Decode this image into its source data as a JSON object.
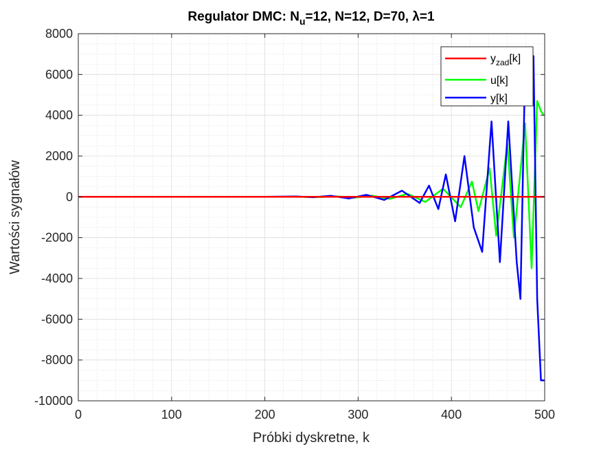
{
  "chart_data": {
    "type": "line",
    "title_parts": {
      "prefix": "Regulator DMC: N",
      "sub": "u",
      "suffix": "=12, N=12, D=70, λ=1"
    },
    "xlabel": "Próbki dyskretne, k",
    "ylabel": "Wartości sygnałów",
    "xlim": [
      0,
      500
    ],
    "ylim": [
      -10000,
      8000
    ],
    "x_ticks": [
      0,
      100,
      200,
      300,
      400,
      500
    ],
    "x_tick_labels": [
      "0",
      "100",
      "200",
      "300",
      "400",
      "500"
    ],
    "y_ticks": [
      -10000,
      -8000,
      -6000,
      -4000,
      -2000,
      0,
      2000,
      4000,
      6000,
      8000
    ],
    "y_tick_labels": [
      "-10000",
      "-8000",
      "-6000",
      "-4000",
      "-2000",
      "0",
      "2000",
      "4000",
      "6000",
      "8000"
    ],
    "grid": true,
    "minor_grid": true,
    "legend_position": "top-right",
    "series": [
      {
        "name_main": "y",
        "name_sub": "zad",
        "name_suffix": "[k]",
        "color": "#ff0000",
        "x": [
          0,
          500
        ],
        "y": [
          0,
          0
        ]
      },
      {
        "name_main": "u[k]",
        "name_sub": "",
        "name_suffix": "",
        "color": "#00ff00",
        "x": [
          0,
          200,
          230,
          260,
          277,
          296,
          315,
          334,
          353,
          372,
          391,
          410,
          422,
          429,
          441,
          448,
          460,
          467,
          479,
          486,
          492,
          496,
          499
        ],
        "y": [
          0,
          0,
          5,
          -10,
          25,
          -40,
          60,
          -100,
          150,
          -250,
          400,
          -500,
          750,
          -700,
          1400,
          -1900,
          2600,
          -2000,
          3600,
          -3500,
          4700,
          4200,
          4000
        ]
      },
      {
        "name_main": "y[k]",
        "name_sub": "",
        "name_suffix": "",
        "color": "#0000ff",
        "x": [
          0,
          200,
          233,
          252,
          271,
          290,
          309,
          328,
          347,
          366,
          376,
          386,
          394,
          404,
          414,
          424,
          433,
          443,
          452,
          461,
          470,
          474,
          479,
          485,
          488,
          492,
          496,
          500
        ],
        "y": [
          0,
          0,
          20,
          -20,
          50,
          -80,
          100,
          -150,
          300,
          -300,
          550,
          -600,
          1100,
          -1200,
          2000,
          -1500,
          -2700,
          3700,
          -3200,
          3700,
          -3200,
          -5000,
          6400,
          7000,
          6900,
          -5000,
          -9000,
          -9000
        ]
      }
    ]
  }
}
